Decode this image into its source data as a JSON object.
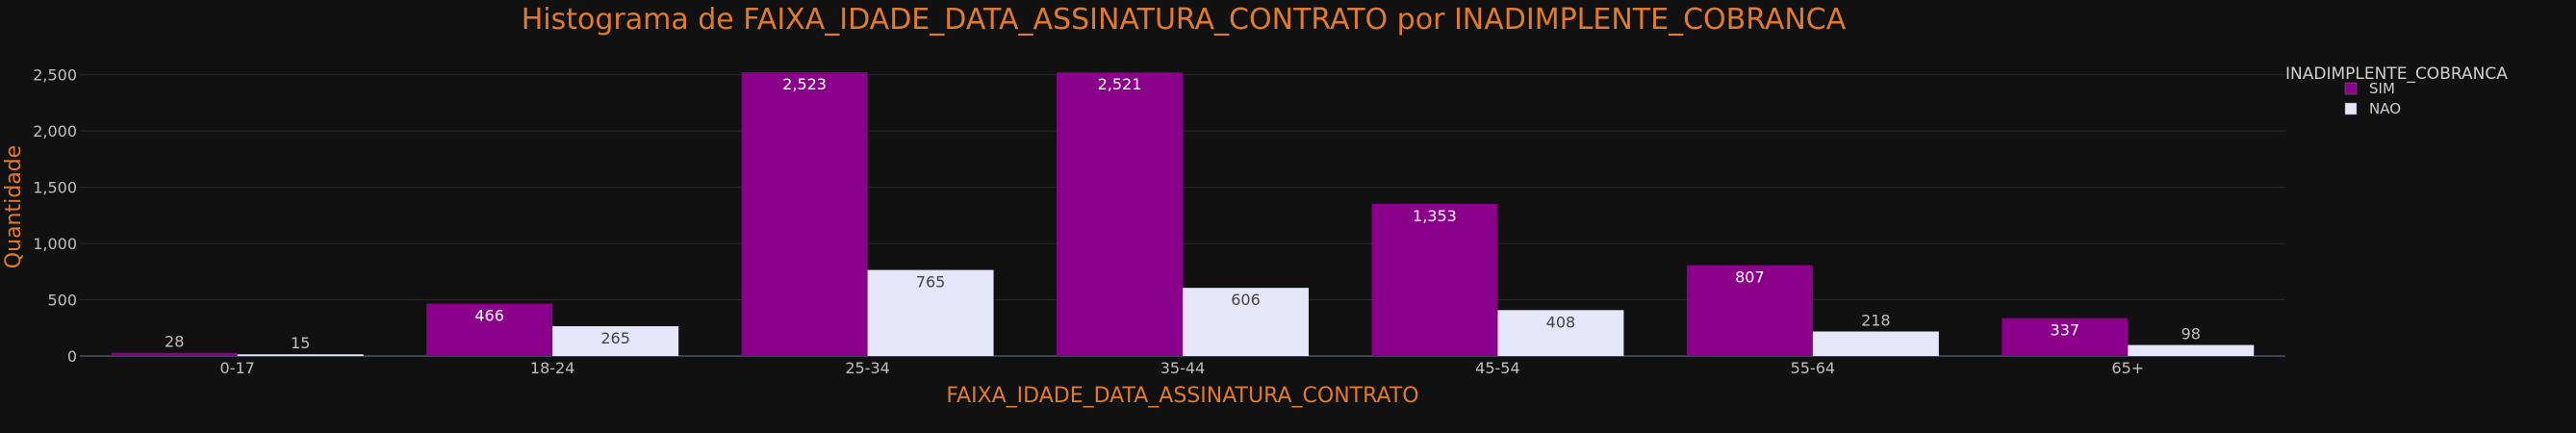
{
  "chart_data": {
    "type": "bar",
    "title": "Histograma de FAIXA_IDADE_DATA_ASSINATURA_CONTRATO por INADIMPLENTE_COBRANCA",
    "xlabel": "FAIXA_IDADE_DATA_ASSINATURA_CONTRATO",
    "ylabel": "Quantidade",
    "categories": [
      "0-17",
      "18-24",
      "25-34",
      "35-44",
      "45-54",
      "55-64",
      "65+"
    ],
    "series": [
      {
        "name": "SIM",
        "color": "#8B008B",
        "values": [
          28,
          466,
          2523,
          2521,
          1353,
          807,
          337
        ]
      },
      {
        "name": "NAO",
        "color": "#E6E6FA",
        "values": [
          15,
          265,
          765,
          606,
          408,
          218,
          98
        ]
      }
    ],
    "data_labels": {
      "SIM": [
        "28",
        "466",
        "2,523",
        "2,521",
        "1,353",
        "807",
        "337"
      ],
      "NAO": [
        "15",
        "265",
        "765",
        "606",
        "408",
        "218",
        "98"
      ]
    },
    "ylim": [
      0,
      2523
    ],
    "yticks": [
      0,
      500,
      1000,
      1500,
      2000,
      2500
    ],
    "ytick_labels": [
      "0",
      "500",
      "1,000",
      "1,500",
      "2,000",
      "2,500"
    ],
    "grid": true,
    "legend": {
      "title": "INADIMPLENTE_COBRANCA",
      "placement": "top-right"
    }
  }
}
